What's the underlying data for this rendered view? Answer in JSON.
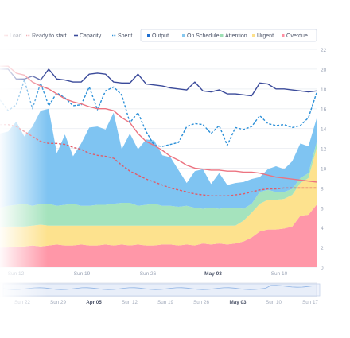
{
  "legend": {
    "left": [
      {
        "label": "Load",
        "color": "#e8707a",
        "style": "solid"
      },
      {
        "label": "Ready to start",
        "color": "#e8707a",
        "style": "dotted"
      },
      {
        "label": "Capacity",
        "color": "#3a4a9a",
        "style": "solid"
      },
      {
        "label": "Spent",
        "color": "#2a8fd8",
        "style": "dotted"
      }
    ],
    "right": [
      {
        "label": "Output",
        "color": "#1f6fd0"
      },
      {
        "label": "On Schedule",
        "color": "#86c8f0"
      },
      {
        "label": "Attention",
        "color": "#9de0b4"
      },
      {
        "label": "Urgent",
        "color": "#fde08a"
      },
      {
        "label": "Overdue",
        "color": "#ff8fa2"
      }
    ]
  },
  "chart_data": {
    "type": "area",
    "x_ticks": [
      "Sun 12",
      "Sun 19",
      "Sun 26",
      "May 03",
      "Sun 10"
    ],
    "x_ticks_bold": [
      "May 03"
    ],
    "y_ticks": [
      0,
      2,
      4,
      6,
      8,
      10,
      12,
      14,
      16,
      18,
      20,
      22
    ],
    "ylim": [
      0,
      22
    ],
    "n_points": 40,
    "stacked_series": [
      {
        "name": "Overdue",
        "color": "#ff97a8",
        "values": [
          2,
          2,
          2.1,
          2.1,
          2.2,
          2.1,
          2.2,
          2.3,
          2.2,
          2.2,
          2.3,
          2.2,
          2.2,
          2.3,
          2.2,
          2.3,
          2.2,
          2.3,
          2.2,
          2.2,
          2.3,
          2.3,
          2.2,
          2.3,
          2.2,
          2.4,
          2.3,
          2.4,
          2.3,
          2.4,
          2.6,
          3,
          3.6,
          3.8,
          3.8,
          3.9,
          4.1,
          5.2,
          5.3,
          6.3
        ]
      },
      {
        "name": "Urgent",
        "color": "#fde28e",
        "values": [
          2,
          2.1,
          2,
          2,
          2,
          2.2,
          2,
          1.9,
          2,
          2,
          1.9,
          2,
          2,
          1.9,
          2,
          1.9,
          2,
          1.9,
          2,
          2,
          1.9,
          1.9,
          2,
          1.9,
          2,
          1.8,
          1.9,
          1.8,
          1.9,
          1.8,
          2.1,
          2.5,
          2.8,
          3,
          3,
          3,
          3.2,
          3.3,
          3.7,
          5.7
        ]
      },
      {
        "name": "Attention",
        "color": "#a5e3bd",
        "values": [
          2,
          2.1,
          2.2,
          2.3,
          2,
          2.1,
          2.2,
          2,
          2.1,
          2.2,
          2,
          2,
          2.1,
          2.1,
          2.2,
          2.3,
          2.3,
          2,
          2.1,
          2.2,
          2,
          2,
          1.9,
          2,
          1.8,
          1.7,
          1.8,
          1.7,
          1.8,
          1.8,
          1.2,
          0.9,
          1.2,
          1,
          0.8,
          0.7,
          0.6,
          0.5,
          0.5,
          0.6
        ]
      },
      {
        "name": "On Schedule",
        "color": "#7fc4f2",
        "values": [
          7.5,
          7.5,
          8.4,
          6.8,
          8,
          9.4,
          9.6,
          5.3,
          7.1,
          4.8,
          6.3,
          7.9,
          7.9,
          7.6,
          9.2,
          5.4,
          7,
          5.7,
          6.6,
          6.4,
          5.1,
          4.9,
          3.7,
          2.3,
          3.7,
          4,
          2.4,
          3.6,
          2.3,
          2.5,
          2.7,
          2.5,
          1.5,
          2.1,
          2.6,
          2.3,
          2.8,
          3.5,
          2.7,
          2.4
        ]
      }
    ],
    "lines": [
      {
        "name": "Capacity",
        "color": "#3a4a9a",
        "dash": "",
        "values": [
          20,
          20,
          19,
          19,
          19.3,
          18.9,
          20,
          19,
          18.9,
          18.7,
          18.7,
          19.5,
          19.6,
          19.5,
          18.7,
          18.6,
          18.6,
          19.5,
          18.5,
          18.4,
          18.3,
          18.1,
          18,
          17.9,
          18.7,
          17.8,
          17.7,
          17.9,
          17.5,
          17.5,
          17.4,
          17.3,
          18.6,
          18.5,
          18,
          18,
          17.9,
          17.8,
          17.7,
          17.8
        ]
      },
      {
        "name": "Spent",
        "color": "#2a8fd8",
        "dash": "3,2",
        "values": [
          16.9,
          15.8,
          16.4,
          18.9,
          16,
          18.6,
          16.3,
          17.6,
          17.1,
          16.3,
          16.4,
          18.2,
          15.9,
          17.8,
          18.2,
          17.4,
          14.6,
          15.6,
          13.7,
          12.3,
          12.2,
          12.4,
          12.6,
          14.2,
          14.5,
          14.4,
          13.5,
          14.3,
          12.3,
          14.1,
          13.9,
          14.2,
          15.3,
          14.5,
          14.3,
          14.4,
          14.1,
          14.3,
          15.1,
          17.6
        ]
      },
      {
        "name": "Load",
        "color": "#ec7380",
        "dash": "",
        "values": [
          20.3,
          20.3,
          19.6,
          19.4,
          18.7,
          18.3,
          18,
          17.5,
          17,
          16.7,
          16.5,
          16.2,
          16,
          16,
          15.8,
          15.1,
          14.6,
          13.5,
          12.7,
          12.3,
          11.8,
          11.2,
          10.8,
          10.3,
          10,
          9.9,
          9.8,
          9.8,
          9.7,
          9.7,
          9.6,
          9.6,
          9.5,
          9.3,
          9.1,
          9,
          8.9,
          8.8,
          8.7,
          8.6
        ]
      },
      {
        "name": "Ready to start",
        "color": "#e25a66",
        "dash": "3,2",
        "values": [
          14.4,
          14.4,
          14.2,
          13.7,
          13.2,
          12.7,
          12.5,
          12.5,
          12.4,
          12.1,
          11.9,
          11.5,
          11.3,
          11.2,
          11,
          10.3,
          9.7,
          9.3,
          8.9,
          8.6,
          8.3,
          8,
          7.8,
          7.6,
          7.4,
          7.3,
          7.2,
          7.2,
          7.2,
          7.3,
          7.4,
          7.6,
          7.8,
          7.9,
          7.9,
          8,
          8,
          8,
          8,
          8
        ]
      }
    ]
  },
  "navigator": {
    "ticks": [
      "Sun 22",
      "Sun 29",
      "Apr 05",
      "Sun 12",
      "Sun 19",
      "Sun 26",
      "May 03",
      "Sun 10",
      "Sun 17"
    ],
    "bold": [
      "Apr 05",
      "May 03"
    ]
  }
}
